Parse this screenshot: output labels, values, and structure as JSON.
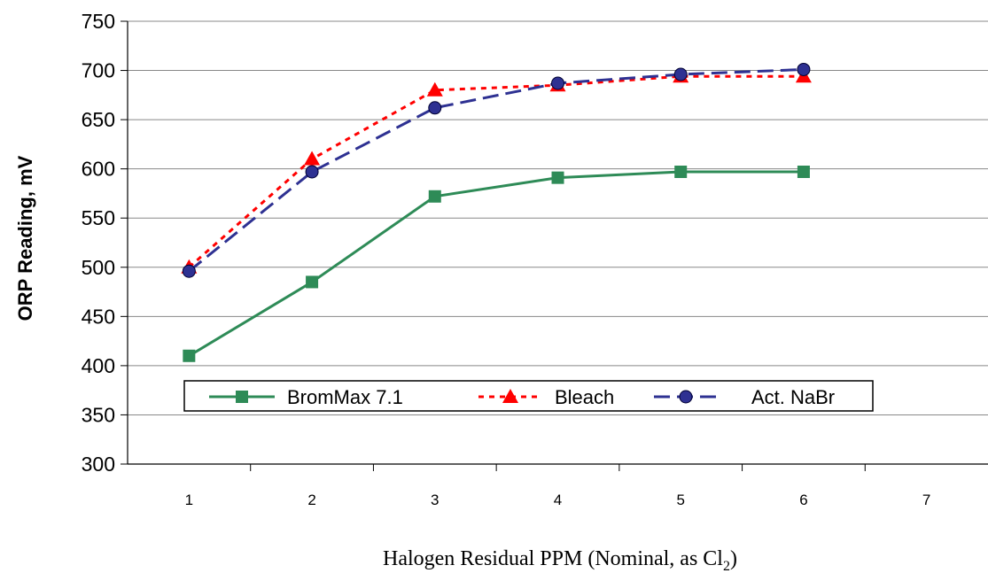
{
  "chart_data": {
    "type": "line",
    "title": "",
    "ylabel": "ORP Reading, mV",
    "xlabel_main": "Halogen Residual PPM (Nominal, as Cl",
    "xlabel_sub": "2",
    "xlabel_end": ")",
    "xlim": [
      0.5,
      7.5
    ],
    "ylim": [
      300,
      750
    ],
    "yticks": [
      300,
      350,
      400,
      450,
      500,
      550,
      600,
      650,
      700,
      750
    ],
    "xticks": [
      1,
      2,
      3,
      4,
      5,
      6,
      7
    ],
    "grid": true,
    "legend": "inside-lower-left",
    "series": [
      {
        "name": "BromMax 7.1",
        "color": "#2e8b57",
        "line": "solid",
        "marker": "square",
        "x": [
          1,
          2,
          3,
          4,
          5,
          6
        ],
        "values": [
          410,
          485,
          572,
          591,
          597,
          597
        ]
      },
      {
        "name": "Bleach",
        "color": "#ff0000",
        "line": "dotted",
        "marker": "triangle",
        "x": [
          1,
          2,
          3,
          4,
          5,
          6
        ],
        "values": [
          500,
          610,
          680,
          685,
          694,
          694
        ]
      },
      {
        "name": "Act. NaBr",
        "color": "#2e3192",
        "line": "dashed",
        "marker": "circle",
        "x": [
          1,
          2,
          3,
          4,
          5,
          6
        ],
        "values": [
          496,
          597,
          662,
          687,
          696,
          701
        ]
      }
    ]
  }
}
